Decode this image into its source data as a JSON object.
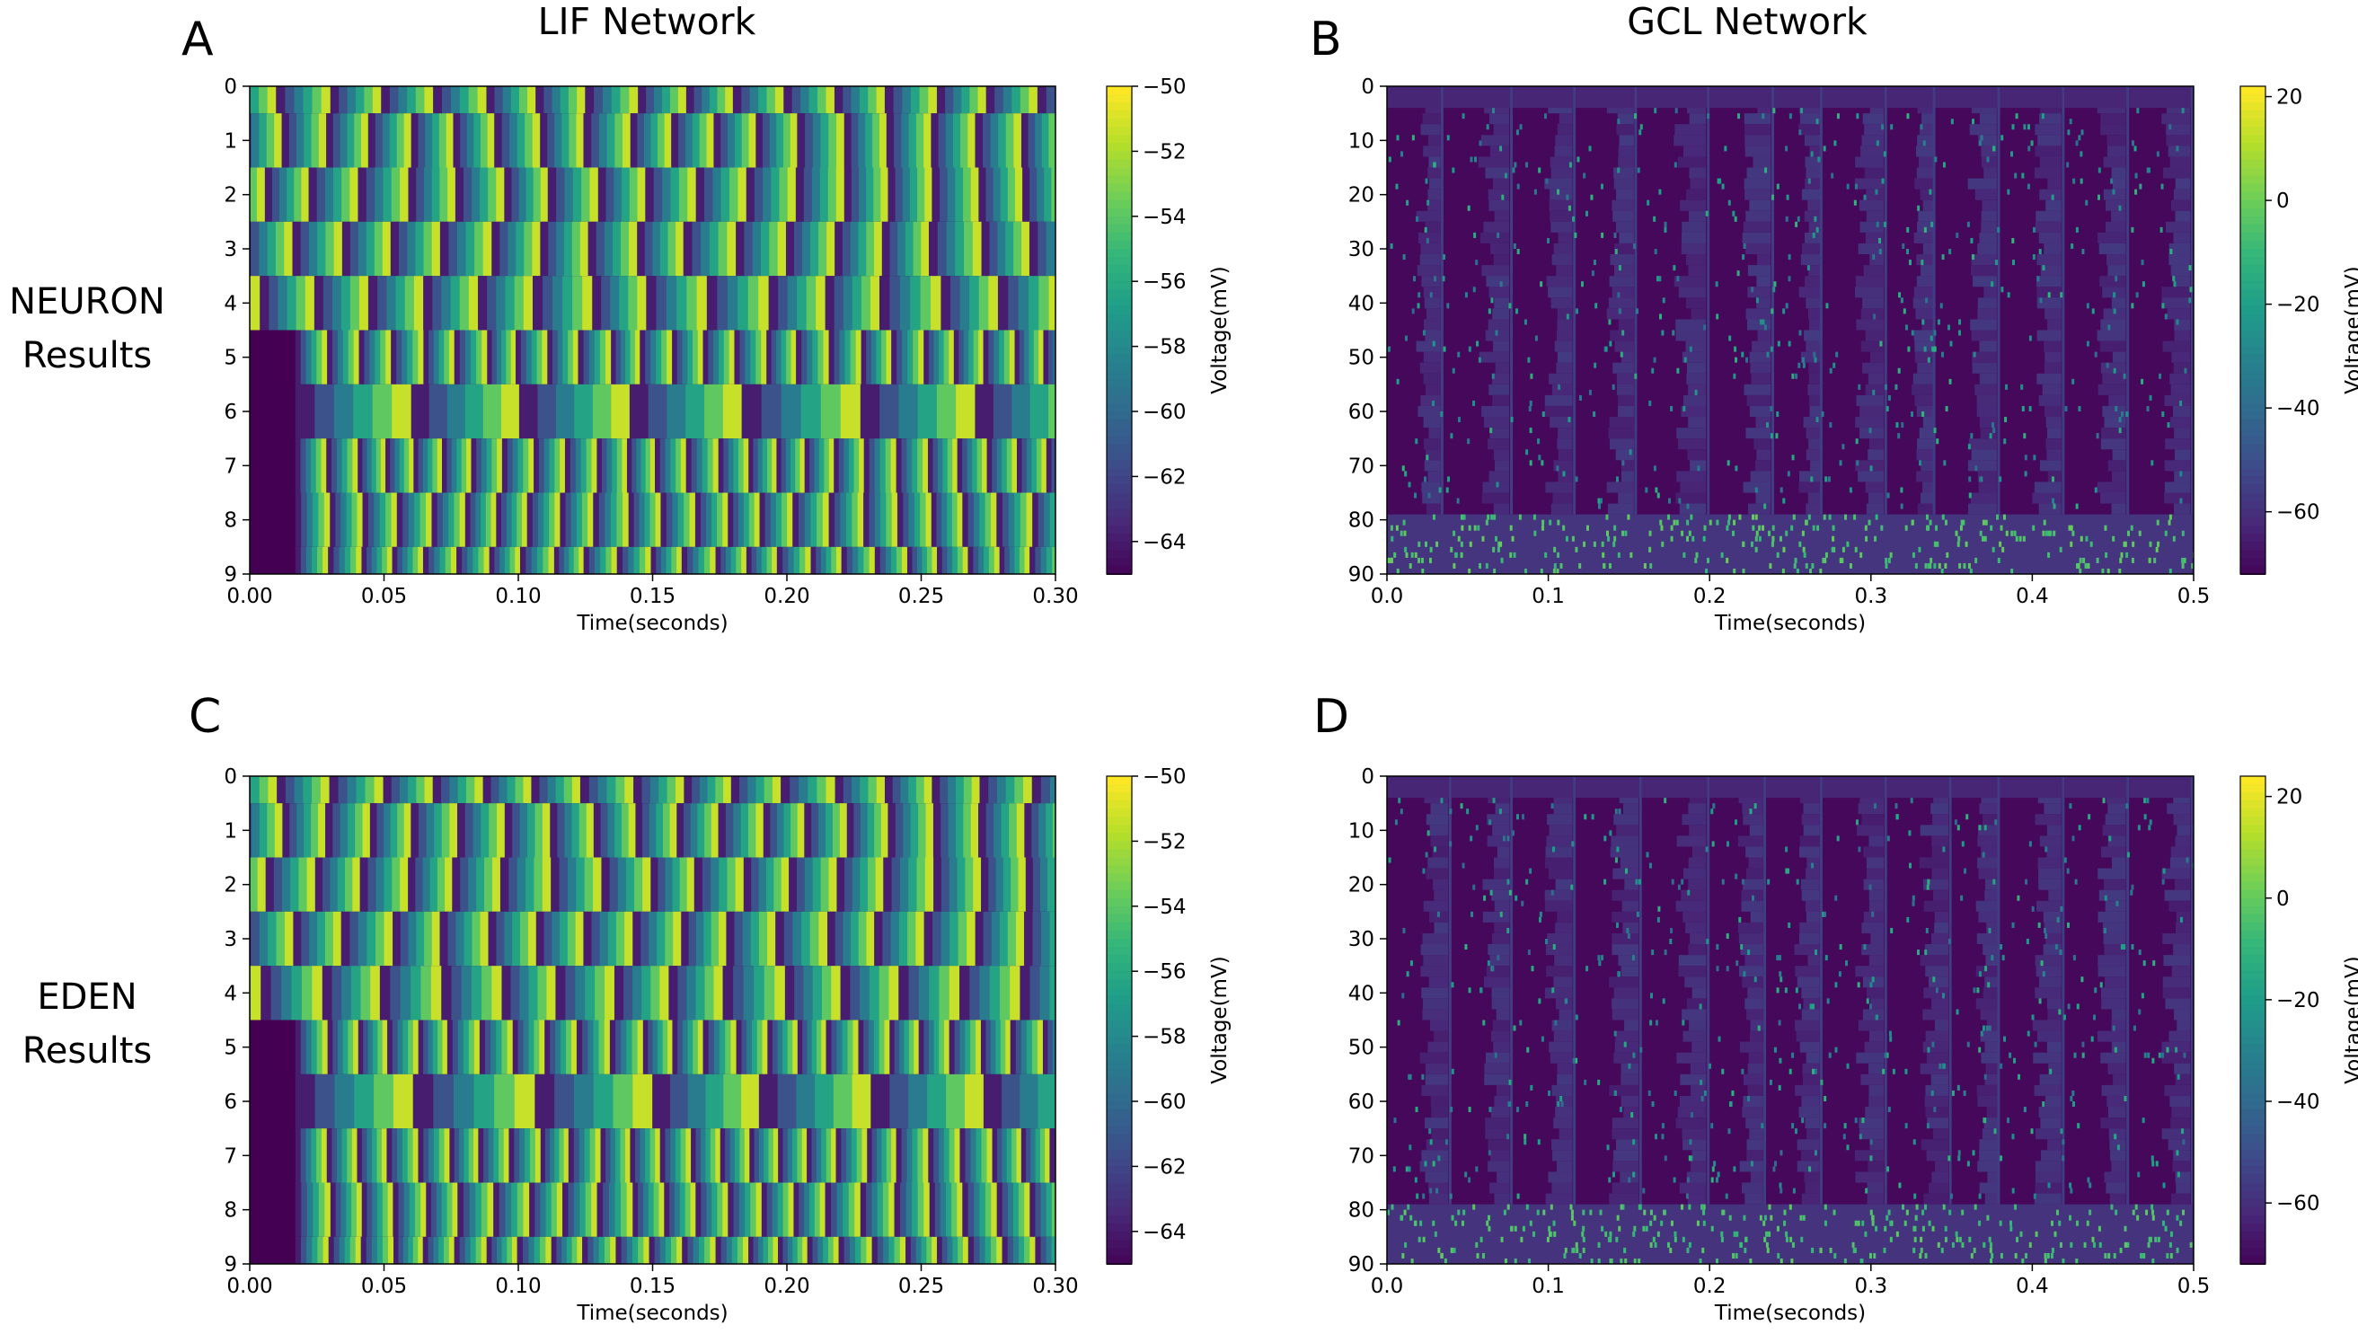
{
  "column_titles": {
    "left": "LIF Network",
    "right": "GCL Network"
  },
  "row_labels": {
    "top": {
      "line1": "NEURON",
      "line2": "Results"
    },
    "bottom": {
      "line1": "EDEN",
      "line2": "Results"
    }
  },
  "colormap": [
    "#440154",
    "#482878",
    "#3e4a89",
    "#31688e",
    "#26828e",
    "#1f9e89",
    "#35b779",
    "#6ece58",
    "#b5de2b",
    "#fde725"
  ],
  "chart_data": [
    {
      "panel": "A",
      "type": "heatmap",
      "network": "LIF",
      "simulator": "NEURON",
      "xlabel": "Time(seconds)",
      "ylabel": "",
      "colorbar_label": "Voltage(mV)",
      "xlim": [
        0.0,
        0.3
      ],
      "ylim": [
        0,
        9
      ],
      "xticks": [
        "0.00",
        "0.05",
        "0.10",
        "0.15",
        "0.20",
        "0.25",
        "0.30"
      ],
      "yticks": [
        "0",
        "1",
        "2",
        "3",
        "4",
        "5",
        "6",
        "7",
        "8",
        "9"
      ],
      "clim": [
        -65,
        -50
      ],
      "cticks": [
        "−50",
        "−52",
        "−54",
        "−56",
        "−58",
        "−60",
        "−62",
        "−64"
      ],
      "cmap": "viridis",
      "n_neurons": 10,
      "onset_late_rows": [
        5,
        6,
        7,
        8,
        9
      ],
      "onset_time": 0.017,
      "row_periods": [
        0.0188,
        0.0165,
        0.0175,
        0.0182,
        0.0215,
        0.0115,
        0.042,
        0.0112,
        0.0125,
        0.0118
      ],
      "row_phases": [
        0.5,
        0.3,
        0.7,
        0.15,
        0.85,
        0.4,
        0.0,
        0.55,
        0.25,
        0.65
      ]
    },
    {
      "panel": "B",
      "type": "heatmap",
      "network": "GCL",
      "simulator": "NEURON",
      "xlabel": "Time(seconds)",
      "ylabel": "",
      "colorbar_label": "Voltage(mV)",
      "xlim": [
        0.0,
        0.5
      ],
      "ylim": [
        0,
        90
      ],
      "xticks": [
        "0.0",
        "0.1",
        "0.2",
        "0.3",
        "0.4",
        "0.5"
      ],
      "yticks": [
        "0",
        "10",
        "20",
        "30",
        "40",
        "50",
        "60",
        "70",
        "80",
        "90"
      ],
      "clim": [
        -72,
        22
      ],
      "cticks": [
        "20",
        "0",
        "−20",
        "−40",
        "−60"
      ],
      "cmap": "viridis",
      "n_neurons": 90,
      "rest_voltage": -70,
      "band_starts": [
        0.0,
        0.035,
        0.078,
        0.117,
        0.155,
        0.2,
        0.24,
        0.27,
        0.31,
        0.34,
        0.38,
        0.42,
        0.46
      ],
      "sparse_rows_from": 79
    },
    {
      "panel": "C",
      "type": "heatmap",
      "network": "LIF",
      "simulator": "EDEN",
      "xlabel": "Time(seconds)",
      "ylabel": "",
      "colorbar_label": "Voltage(mV)",
      "xlim": [
        0.0,
        0.3
      ],
      "ylim": [
        0,
        9
      ],
      "xticks": [
        "0.00",
        "0.05",
        "0.10",
        "0.15",
        "0.20",
        "0.25",
        "0.30"
      ],
      "yticks": [
        "0",
        "1",
        "2",
        "3",
        "4",
        "5",
        "6",
        "7",
        "8",
        "9"
      ],
      "clim": [
        -65,
        -50
      ],
      "cticks": [
        "−50",
        "−52",
        "−54",
        "−56",
        "−58",
        "−60",
        "−62",
        "−64"
      ],
      "cmap": "viridis",
      "n_neurons": 10,
      "onset_late_rows": [
        5,
        6,
        7,
        8,
        9
      ],
      "onset_time": 0.017,
      "row_periods": [
        0.0188,
        0.0165,
        0.0175,
        0.0182,
        0.0215,
        0.0115,
        0.042,
        0.0112,
        0.0125,
        0.0118
      ],
      "row_phases": [
        0.5,
        0.3,
        0.7,
        0.15,
        0.85,
        0.4,
        0.0,
        0.55,
        0.25,
        0.65
      ]
    },
    {
      "panel": "D",
      "type": "heatmap",
      "network": "GCL",
      "simulator": "EDEN",
      "xlabel": "Time(seconds)",
      "ylabel": "",
      "colorbar_label": "Voltage(mV)",
      "xlim": [
        0.0,
        0.5
      ],
      "ylim": [
        0,
        90
      ],
      "xticks": [
        "0.0",
        "0.1",
        "0.2",
        "0.3",
        "0.4",
        "0.5"
      ],
      "yticks": [
        "0",
        "10",
        "20",
        "30",
        "40",
        "50",
        "60",
        "70",
        "80",
        "90"
      ],
      "clim": [
        -72,
        24
      ],
      "cticks": [
        "20",
        "0",
        "−20",
        "−40",
        "−60"
      ],
      "cmap": "viridis",
      "n_neurons": 90,
      "rest_voltage": -70,
      "band_starts": [
        0.0,
        0.04,
        0.078,
        0.117,
        0.158,
        0.2,
        0.235,
        0.27,
        0.31,
        0.35,
        0.38,
        0.42,
        0.46
      ],
      "sparse_rows_from": 79
    }
  ]
}
